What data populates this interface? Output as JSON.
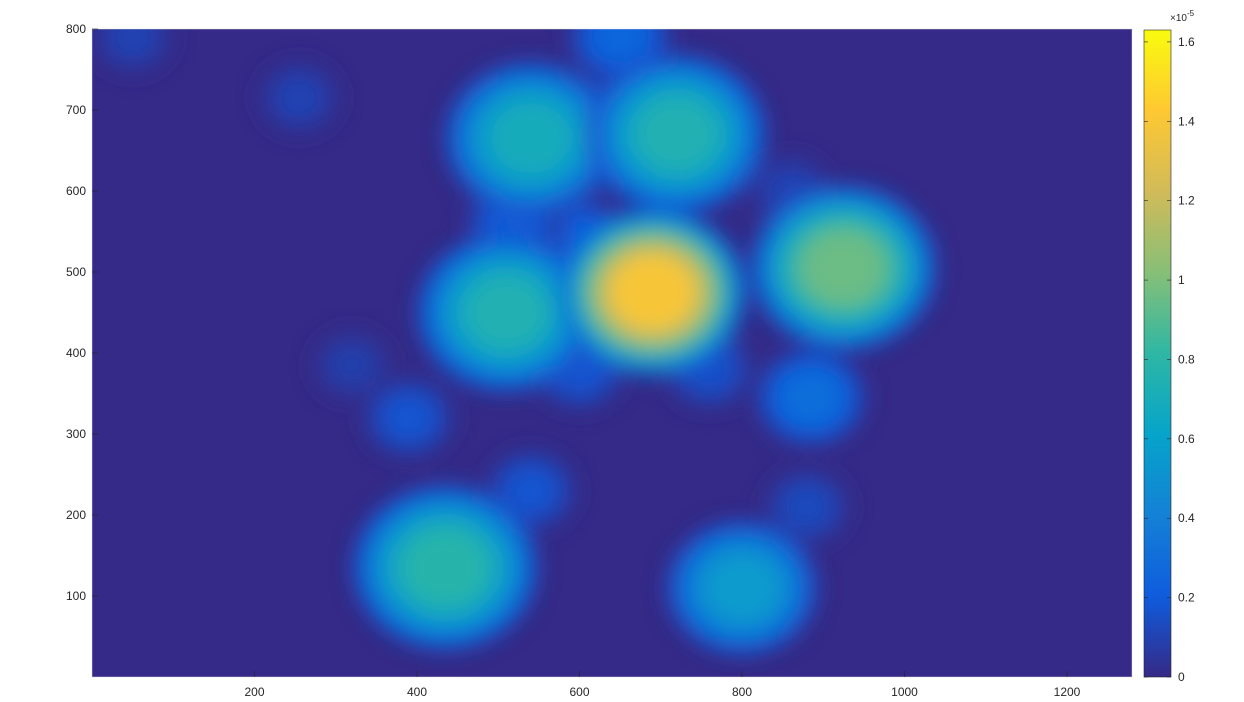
{
  "chart_data": {
    "type": "heatmap",
    "title": "",
    "xlabel": "",
    "ylabel": "",
    "xlim": [
      0,
      1280
    ],
    "ylim": [
      0,
      800
    ],
    "x_ticks": [
      200,
      400,
      600,
      800,
      1000,
      1200
    ],
    "y_ticks": [
      100,
      200,
      300,
      400,
      500,
      600,
      700,
      800
    ],
    "colormap": "parula",
    "colormap_stops": [
      "#352a87",
      "#0f5cdd",
      "#1481d6",
      "#06a4ca",
      "#2eb7a4",
      "#87bf77",
      "#d1bb59",
      "#fec832",
      "#f9fb0e"
    ],
    "colorbar": {
      "range": [
        0,
        1.63
      ],
      "ticks": [
        0,
        0.2,
        0.4,
        0.6,
        0.8,
        1,
        1.2,
        1.4,
        1.6
      ],
      "tick_labels": [
        "0",
        "0.2",
        "0.4",
        "0.6",
        "0.8",
        "1",
        "1.2",
        "1.4",
        "1.6"
      ],
      "exponent_base": "×10",
      "exponent_power": "-5"
    },
    "grid": false,
    "hotspots": [
      {
        "x": 690,
        "y": 475,
        "peak": 1.6
      },
      {
        "x": 925,
        "y": 505,
        "peak": 1.1
      },
      {
        "x": 510,
        "y": 450,
        "peak": 0.85
      },
      {
        "x": 540,
        "y": 665,
        "peak": 0.8
      },
      {
        "x": 720,
        "y": 670,
        "peak": 0.85
      },
      {
        "x": 435,
        "y": 135,
        "peak": 0.9
      },
      {
        "x": 800,
        "y": 110,
        "peak": 0.65
      },
      {
        "x": 885,
        "y": 345,
        "peak": 0.35
      },
      {
        "x": 630,
        "y": 670,
        "peak": 0.45
      },
      {
        "x": 600,
        "y": 540,
        "peak": 0.25
      },
      {
        "x": 520,
        "y": 560,
        "peak": 0.25
      },
      {
        "x": 650,
        "y": 790,
        "peak": 0.3
      },
      {
        "x": 390,
        "y": 320,
        "peak": 0.2
      },
      {
        "x": 540,
        "y": 230,
        "peak": 0.2
      },
      {
        "x": 880,
        "y": 210,
        "peak": 0.15
      },
      {
        "x": 255,
        "y": 715,
        "peak": 0.12
      },
      {
        "x": 50,
        "y": 790,
        "peak": 0.12
      },
      {
        "x": 320,
        "y": 385,
        "peak": 0.1
      },
      {
        "x": 860,
        "y": 600,
        "peak": 0.12
      },
      {
        "x": 600,
        "y": 380,
        "peak": 0.2
      },
      {
        "x": 760,
        "y": 380,
        "peak": 0.18
      }
    ]
  }
}
